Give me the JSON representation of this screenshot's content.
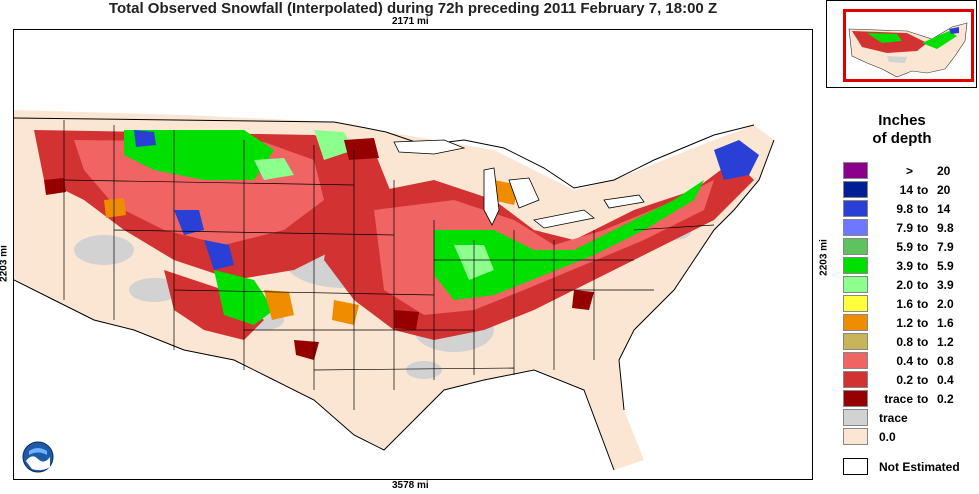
{
  "title": "Total Observed Snowfall (Interpolated) during 72h preceding 2011 February 7, 18:00 Z",
  "dimensions": {
    "top": "2171 mi",
    "bottom": "3578 mi",
    "left": "2203 mi",
    "right": "2203 mi"
  },
  "legend": {
    "title_line1": "Inches",
    "title_line2": "of depth",
    "rows": [
      {
        "lo": ">",
        "to": "",
        "hi": "20",
        "color": "#8b008b"
      },
      {
        "lo": "14",
        "to": "to",
        "hi": "20",
        "color": "#001e96"
      },
      {
        "lo": "9.8",
        "to": "to",
        "hi": "14",
        "color": "#2a3fd6"
      },
      {
        "lo": "7.9",
        "to": "to",
        "hi": "9.8",
        "color": "#6e78ff"
      },
      {
        "lo": "5.9",
        "to": "to",
        "hi": "7.9",
        "color": "#5ec35e"
      },
      {
        "lo": "3.9",
        "to": "to",
        "hi": "5.9",
        "color": "#00e000"
      },
      {
        "lo": "2.0",
        "to": "to",
        "hi": "3.9",
        "color": "#8cff8c"
      },
      {
        "lo": "1.6",
        "to": "to",
        "hi": "2.0",
        "color": "#ffff3c"
      },
      {
        "lo": "1.2",
        "to": "to",
        "hi": "1.6",
        "color": "#f08c00"
      },
      {
        "lo": "0.8",
        "to": "to",
        "hi": "1.2",
        "color": "#c8b45a"
      },
      {
        "lo": "0.4",
        "to": "to",
        "hi": "0.8",
        "color": "#f06464"
      },
      {
        "lo": "0.2",
        "to": "to",
        "hi": "0.4",
        "color": "#d23232"
      },
      {
        "lo": "trace",
        "to": "to",
        "hi": "0.2",
        "color": "#960000"
      },
      {
        "lo": "",
        "to": "",
        "hi": "",
        "single": "trace",
        "color": "#d2d2d2"
      },
      {
        "lo": "",
        "to": "",
        "hi": "",
        "single": "0.0",
        "color": "#fae6d2"
      }
    ],
    "not_estimated": "Not Estimated"
  },
  "logo": "NOAA",
  "colors": {
    "land_bare": "#fae6d2",
    "trace": "#d2d2d2",
    "water": "#ffffff",
    "inset_box": "#e00000"
  }
}
